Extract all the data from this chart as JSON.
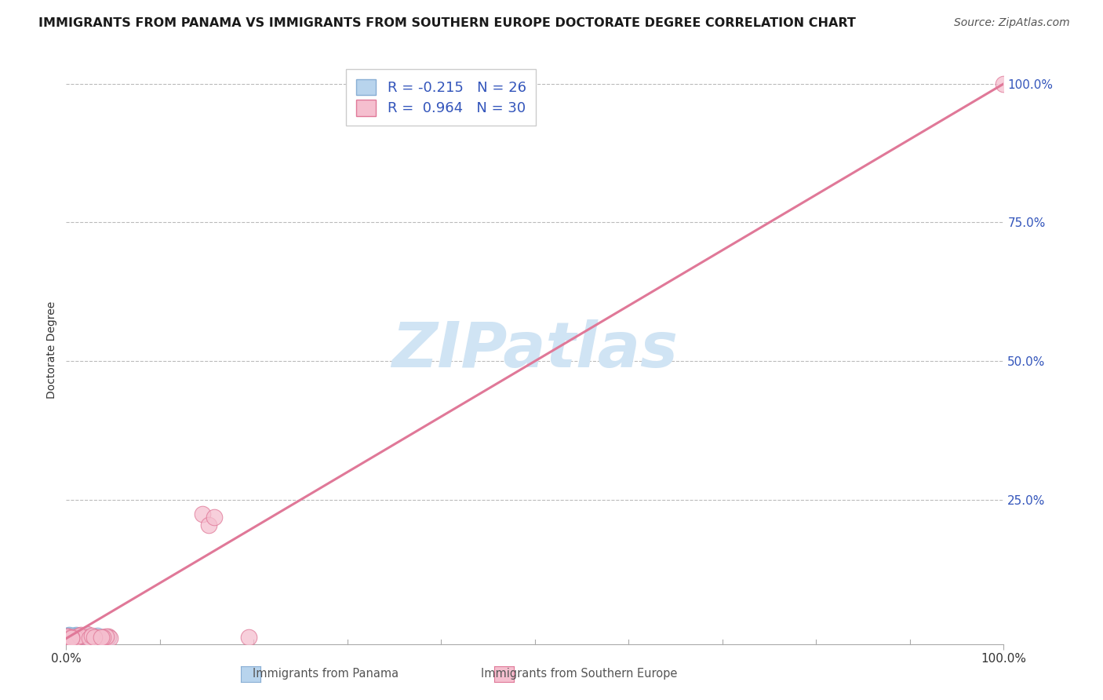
{
  "title": "IMMIGRANTS FROM PANAMA VS IMMIGRANTS FROM SOUTHERN EUROPE DOCTORATE DEGREE CORRELATION CHART",
  "source": "Source: ZipAtlas.com",
  "ylabel": "Doctorate Degree",
  "xlim": [
    0.0,
    1.0
  ],
  "ylim": [
    -0.01,
    1.05
  ],
  "ytick_positions": [
    0.0,
    0.25,
    0.5,
    0.75,
    1.0
  ],
  "ytick_labels": [
    "",
    "25.0%",
    "50.0%",
    "75.0%",
    "100.0%"
  ],
  "xtick_positions": [
    0.0,
    1.0
  ],
  "xtick_labels": [
    "0.0%",
    "100.0%"
  ],
  "grid_color": "#bbbbbb",
  "background_color": "#ffffff",
  "panama_color": "#b8d4ed",
  "panama_edge_color": "#88aed4",
  "southern_europe_color": "#f5bfcf",
  "southern_europe_edge_color": "#e07898",
  "panama_R": -0.215,
  "panama_N": 26,
  "southern_europe_R": 0.964,
  "southern_europe_N": 30,
  "southern_europe_line_color": "#e07898",
  "watermark_text": "ZIPatlas",
  "watermark_color": "#d0e4f4",
  "title_fontsize": 11.5,
  "axis_label_fontsize": 10,
  "tick_fontsize": 11,
  "legend_fontsize": 13,
  "source_fontsize": 10,
  "legend_text_color": "#3355bb",
  "ytick_color": "#3355bb",
  "source_color": "#555555"
}
